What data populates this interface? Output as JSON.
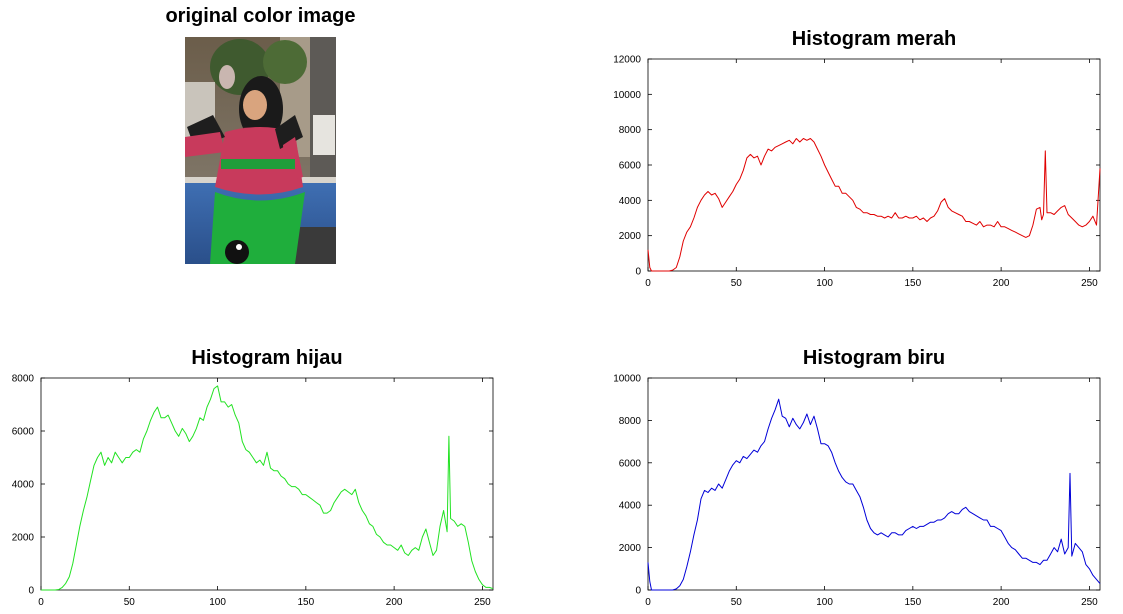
{
  "photo": {
    "title": "original color image"
  },
  "chart_data": [
    {
      "type": "line",
      "id": "red",
      "title": "Histogram merah",
      "color": "#e00000",
      "xlim": [
        0,
        256
      ],
      "ylim": [
        0,
        12000
      ],
      "xticks": [
        0,
        50,
        100,
        150,
        200,
        250
      ],
      "yticks": [
        0,
        2000,
        4000,
        6000,
        8000,
        10000,
        12000
      ],
      "grid": false,
      "series": [
        {
          "x": [
            0,
            1,
            2,
            4,
            8,
            12,
            14,
            16,
            18,
            20,
            22,
            24,
            26,
            28,
            30,
            32,
            34,
            36,
            38,
            40,
            42,
            44,
            46,
            48,
            50,
            52,
            54,
            56,
            58,
            60,
            62,
            64,
            66,
            68,
            70,
            72,
            74,
            76,
            78,
            80,
            82,
            84,
            86,
            88,
            90,
            92,
            94,
            96,
            98,
            100,
            102,
            104,
            106,
            108,
            110,
            112,
            114,
            116,
            118,
            120,
            122,
            124,
            126,
            128,
            130,
            132,
            134,
            136,
            138,
            140,
            142,
            144,
            146,
            148,
            150,
            152,
            154,
            156,
            158,
            160,
            162,
            164,
            166,
            168,
            170,
            172,
            174,
            176,
            178,
            180,
            182,
            184,
            186,
            188,
            190,
            192,
            194,
            196,
            198,
            200,
            202,
            204,
            206,
            208,
            210,
            212,
            214,
            216,
            218,
            220,
            222,
            223,
            224,
            225,
            226,
            228,
            230,
            232,
            234,
            236,
            238,
            240,
            242,
            244,
            246,
            248,
            250,
            252,
            254,
            256
          ],
          "y": [
            1200,
            200,
            0,
            0,
            0,
            0,
            50,
            200,
            800,
            1700,
            2200,
            2500,
            3000,
            3600,
            4000,
            4300,
            4500,
            4300,
            4400,
            4100,
            3600,
            3900,
            4200,
            4500,
            4900,
            5200,
            5700,
            6400,
            6600,
            6400,
            6500,
            6000,
            6500,
            6900,
            6800,
            7000,
            7100,
            7200,
            7300,
            7400,
            7200,
            7500,
            7300,
            7500,
            7400,
            7500,
            7300,
            6900,
            6500,
            6000,
            5600,
            5200,
            4800,
            4800,
            4400,
            4400,
            4200,
            4000,
            3600,
            3500,
            3300,
            3300,
            3200,
            3200,
            3100,
            3100,
            3000,
            3100,
            3000,
            3300,
            3000,
            3000,
            3100,
            3000,
            3000,
            3100,
            2900,
            3000,
            2800,
            3000,
            3100,
            3400,
            3900,
            4100,
            3600,
            3400,
            3300,
            3200,
            3100,
            2800,
            2800,
            2700,
            2600,
            2800,
            2500,
            2600,
            2600,
            2500,
            2800,
            2500,
            2500,
            2400,
            2300,
            2200,
            2100,
            2000,
            1900,
            2000,
            2600,
            3500,
            3600,
            2900,
            3200,
            6800,
            3300,
            3300,
            3200,
            3400,
            3600,
            3700,
            3200,
            3000,
            2800,
            2600,
            2500,
            2600,
            2800,
            3100,
            2600,
            5800
          ]
        }
      ]
    },
    {
      "type": "line",
      "id": "green",
      "title": "Histogram hijau",
      "color": "#22e222",
      "xlim": [
        0,
        256
      ],
      "ylim": [
        0,
        8000
      ],
      "xticks": [
        0,
        50,
        100,
        150,
        200,
        250
      ],
      "yticks": [
        0,
        2000,
        4000,
        6000,
        8000
      ],
      "grid": false,
      "series": [
        {
          "x": [
            0,
            4,
            8,
            10,
            12,
            14,
            16,
            18,
            20,
            22,
            24,
            26,
            28,
            30,
            32,
            34,
            36,
            38,
            40,
            42,
            44,
            46,
            48,
            50,
            52,
            54,
            56,
            58,
            60,
            62,
            64,
            66,
            68,
            70,
            72,
            74,
            76,
            78,
            80,
            82,
            84,
            86,
            88,
            90,
            92,
            94,
            96,
            98,
            100,
            102,
            104,
            106,
            108,
            110,
            112,
            114,
            116,
            118,
            120,
            122,
            124,
            126,
            128,
            130,
            132,
            134,
            136,
            138,
            140,
            142,
            144,
            146,
            148,
            150,
            152,
            154,
            156,
            158,
            160,
            162,
            164,
            166,
            168,
            170,
            172,
            174,
            176,
            178,
            180,
            182,
            184,
            186,
            188,
            190,
            192,
            194,
            196,
            198,
            200,
            202,
            204,
            206,
            208,
            210,
            212,
            214,
            216,
            218,
            220,
            222,
            224,
            226,
            228,
            230,
            231,
            232,
            234,
            236,
            238,
            240,
            242,
            244,
            246,
            248,
            250,
            252,
            254,
            256
          ],
          "y": [
            0,
            0,
            0,
            20,
            100,
            250,
            500,
            1000,
            1700,
            2400,
            3000,
            3500,
            4100,
            4700,
            5000,
            5200,
            4700,
            5000,
            4800,
            5200,
            5000,
            4800,
            5000,
            5000,
            5200,
            5300,
            5200,
            5700,
            6000,
            6400,
            6700,
            6900,
            6500,
            6500,
            6600,
            6300,
            6000,
            5800,
            6100,
            5900,
            5600,
            5800,
            6100,
            6500,
            6400,
            6900,
            7200,
            7600,
            7700,
            7100,
            7100,
            6900,
            7000,
            6600,
            6300,
            5600,
            5300,
            5200,
            5000,
            4800,
            4900,
            4700,
            5200,
            4600,
            4500,
            4500,
            4300,
            4200,
            4000,
            3900,
            3900,
            3800,
            3600,
            3600,
            3500,
            3400,
            3300,
            3200,
            2900,
            2900,
            3000,
            3300,
            3500,
            3700,
            3800,
            3700,
            3600,
            3800,
            3300,
            3000,
            2800,
            2500,
            2400,
            2100,
            2000,
            1800,
            1700,
            1700,
            1600,
            1500,
            1700,
            1400,
            1300,
            1500,
            1600,
            1500,
            2000,
            2300,
            1800,
            1300,
            1500,
            2400,
            3000,
            2200,
            5800,
            2700,
            2600,
            2400,
            2500,
            2400,
            1800,
            1100,
            700,
            400,
            200,
            100,
            100,
            50
          ]
        }
      ]
    },
    {
      "type": "line",
      "id": "blue",
      "title": "Histogram biru",
      "color": "#0000d8",
      "xlim": [
        0,
        256
      ],
      "ylim": [
        0,
        10000
      ],
      "xticks": [
        0,
        50,
        100,
        150,
        200,
        250
      ],
      "yticks": [
        0,
        2000,
        4000,
        6000,
        8000,
        10000
      ],
      "grid": false,
      "series": [
        {
          "x": [
            0,
            1,
            2,
            4,
            8,
            12,
            14,
            16,
            18,
            20,
            22,
            24,
            26,
            28,
            30,
            32,
            34,
            36,
            38,
            40,
            42,
            44,
            46,
            48,
            50,
            52,
            54,
            56,
            58,
            60,
            62,
            64,
            66,
            68,
            70,
            72,
            74,
            76,
            78,
            80,
            82,
            84,
            86,
            88,
            90,
            92,
            94,
            96,
            98,
            100,
            102,
            104,
            106,
            108,
            110,
            112,
            114,
            116,
            118,
            120,
            122,
            124,
            126,
            128,
            130,
            132,
            134,
            136,
            138,
            140,
            142,
            144,
            146,
            148,
            150,
            152,
            154,
            156,
            158,
            160,
            162,
            164,
            166,
            168,
            170,
            172,
            174,
            176,
            178,
            180,
            182,
            184,
            186,
            188,
            190,
            192,
            194,
            196,
            198,
            200,
            202,
            204,
            206,
            208,
            210,
            212,
            214,
            216,
            218,
            220,
            222,
            224,
            226,
            228,
            230,
            232,
            234,
            236,
            238,
            239,
            240,
            242,
            244,
            246,
            248,
            250,
            252,
            254,
            256
          ],
          "y": [
            1300,
            400,
            0,
            0,
            0,
            0,
            0,
            50,
            200,
            500,
            1100,
            1800,
            2600,
            3300,
            4300,
            4700,
            4600,
            4800,
            4700,
            5000,
            4800,
            5200,
            5600,
            5900,
            6100,
            6000,
            6300,
            6200,
            6400,
            6600,
            6500,
            6800,
            7000,
            7600,
            8100,
            8500,
            9000,
            8200,
            8100,
            7700,
            8100,
            7800,
            7600,
            7900,
            8300,
            7800,
            8200,
            7600,
            6900,
            6900,
            6800,
            6500,
            6000,
            5600,
            5300,
            5100,
            5000,
            5000,
            4700,
            4400,
            3900,
            3300,
            2900,
            2700,
            2600,
            2700,
            2600,
            2500,
            2700,
            2700,
            2600,
            2600,
            2800,
            2900,
            3000,
            2900,
            3000,
            3000,
            3100,
            3200,
            3200,
            3300,
            3300,
            3400,
            3600,
            3700,
            3600,
            3600,
            3800,
            3900,
            3700,
            3600,
            3500,
            3400,
            3300,
            3300,
            3000,
            3000,
            2900,
            2800,
            2500,
            2200,
            2000,
            1900,
            1700,
            1500,
            1500,
            1400,
            1300,
            1300,
            1200,
            1400,
            1400,
            1700,
            2000,
            1800,
            2400,
            1700,
            2000,
            5500,
            1600,
            2200,
            2000,
            1800,
            1200,
            1000,
            700,
            500,
            300
          ]
        }
      ]
    }
  ]
}
